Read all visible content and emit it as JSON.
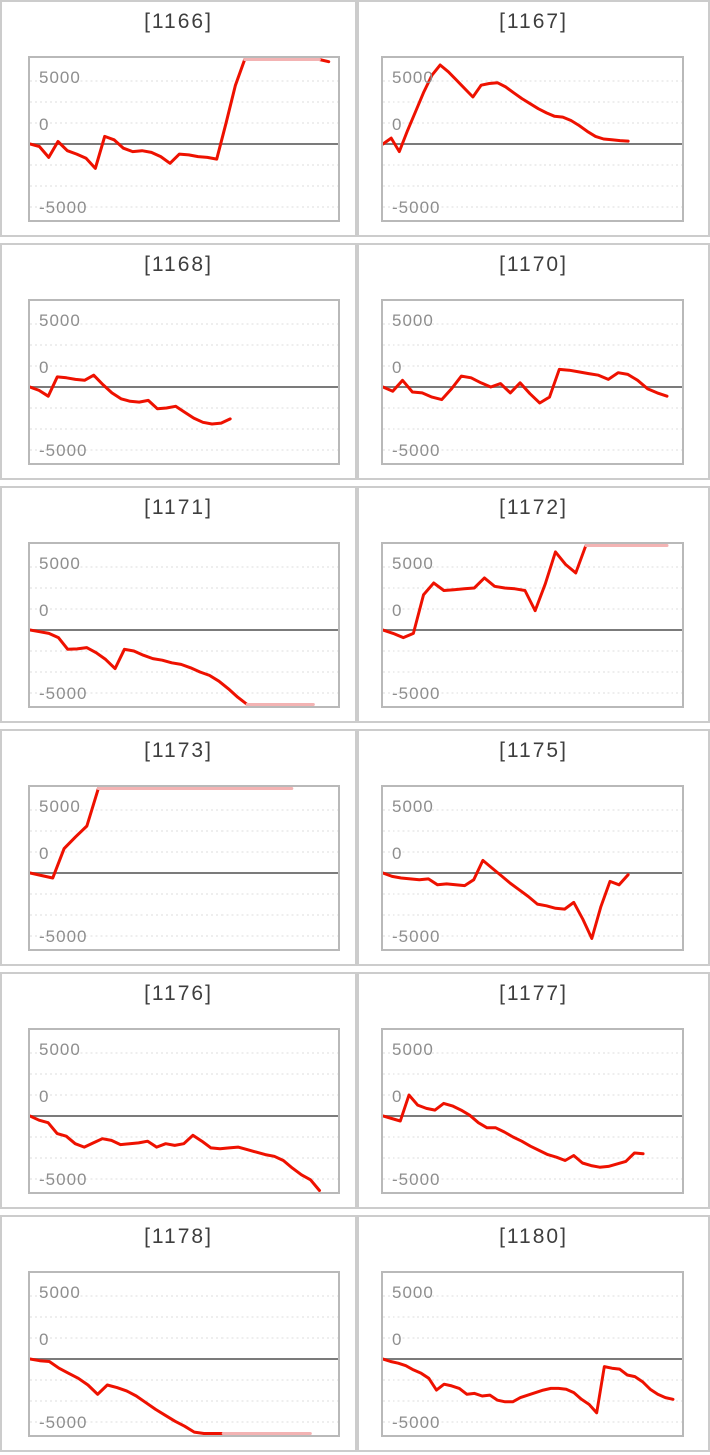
{
  "page": {
    "background": "#ffffff",
    "description": "Grid of 12 machine slump graphs"
  },
  "colors": {
    "line_red": "#ee1100",
    "line_cap_pink": "#f3b3b3",
    "grid_dotted": "#dedede",
    "zero_line": "#7b7b7b",
    "chart_border": "#b9b9b9",
    "frame_border": "#cccccc",
    "tick_label": "#8e8e8e",
    "title_text": "#3e3e3e"
  },
  "axis": {
    "tick_labels": [
      "5000",
      "0",
      "-5000"
    ],
    "tick_values": [
      5000,
      0,
      -5000
    ],
    "grid_values": [
      7500,
      5000,
      2500,
      -2500,
      -5000,
      -7500
    ],
    "units_per_grid": 2500,
    "zero_value": 0,
    "cap_top": 10400,
    "cap_bottom": -9400,
    "grid_style": "dotted",
    "legend": "none"
  },
  "chart_data": [
    {
      "type": "line",
      "title": "[1166]",
      "id": "1166",
      "ylim": [
        -9400,
        10400
      ],
      "x_span_frac": 0.97,
      "values": [
        0,
        -300,
        -1600,
        300,
        -800,
        -1200,
        -1700,
        -2900,
        900,
        500,
        -500,
        -900,
        -800,
        -1000,
        -1500,
        -2300,
        -1200,
        -1300,
        -1500,
        -1600,
        -1800,
        2500,
        7000,
        10400,
        10400,
        10400,
        10400,
        10400,
        10400,
        10400,
        10400,
        10400,
        9800
      ]
    },
    {
      "type": "line",
      "title": "[1167]",
      "id": "1167",
      "ylim": [
        -9400,
        10400
      ],
      "x_span_frac": 0.82,
      "values": [
        0,
        700,
        -900,
        1600,
        3900,
        6200,
        8200,
        9400,
        8600,
        7600,
        6600,
        5600,
        7000,
        7200,
        7300,
        6800,
        6100,
        5400,
        4800,
        4200,
        3700,
        3300,
        3200,
        2800,
        2200,
        1500,
        900,
        600,
        500,
        400,
        350
      ]
    },
    {
      "type": "line",
      "title": "[1168]",
      "id": "1168",
      "ylim": [
        -9400,
        10400
      ],
      "x_span_frac": 0.65,
      "values": [
        0,
        -400,
        -1100,
        1200,
        1100,
        900,
        800,
        1400,
        300,
        -700,
        -1400,
        -1700,
        -1800,
        -1600,
        -2600,
        -2500,
        -2300,
        -3000,
        -3700,
        -4200,
        -4400,
        -4300,
        -3800
      ]
    },
    {
      "type": "line",
      "title": "[1170]",
      "id": "1170",
      "ylim": [
        -9400,
        10400
      ],
      "x_span_frac": 0.95,
      "values": [
        0,
        -500,
        800,
        -600,
        -700,
        -1200,
        -1500,
        -200,
        1300,
        1100,
        500,
        0,
        400,
        -700,
        500,
        -800,
        -1900,
        -1200,
        2100,
        2000,
        1800,
        1600,
        1400,
        900,
        1700,
        1500,
        800,
        -200,
        -700,
        -1100
      ]
    },
    {
      "type": "line",
      "title": "[1171]",
      "id": "1171",
      "ylim": [
        -9400,
        10400
      ],
      "x_span_frac": 0.92,
      "values": [
        0,
        -200,
        -400,
        -900,
        -2300,
        -2250,
        -2100,
        -2700,
        -3500,
        -4600,
        -2300,
        -2500,
        -3000,
        -3400,
        -3600,
        -3900,
        -4100,
        -4500,
        -5000,
        -5400,
        -6100,
        -7000,
        -8000,
        -9400,
        -9400,
        -9400,
        -9400,
        -9400,
        -9400,
        -9400,
        -9400
      ]
    },
    {
      "type": "line",
      "title": "[1172]",
      "id": "1172",
      "ylim": [
        -9400,
        10400
      ],
      "x_span_frac": 0.95,
      "values": [
        0,
        -400,
        -900,
        -400,
        4200,
        5600,
        4700,
        4800,
        4900,
        5000,
        6200,
        5200,
        5000,
        4900,
        4700,
        2300,
        5500,
        9300,
        7800,
        6800,
        10400,
        10400,
        10400,
        10400,
        10400,
        10400,
        10400,
        10400,
        10400
      ]
    },
    {
      "type": "line",
      "title": "[1173]",
      "id": "1173",
      "ylim": [
        -9400,
        10400
      ],
      "x_span_frac": 0.85,
      "values": [
        0,
        -300,
        -600,
        2900,
        4300,
        5600,
        10400,
        10400,
        10400,
        10400,
        10400,
        10400,
        10400,
        10400,
        10400,
        10400,
        10400,
        10400,
        10400,
        10400,
        10400,
        10400,
        10400,
        10400
      ]
    },
    {
      "type": "line",
      "title": "[1175]",
      "id": "1175",
      "ylim": [
        -9400,
        10400
      ],
      "x_span_frac": 0.82,
      "values": [
        0,
        -400,
        -600,
        -700,
        -800,
        -700,
        -1400,
        -1300,
        -1400,
        -1500,
        -800,
        1500,
        600,
        -300,
        -1200,
        -2000,
        -2800,
        -3700,
        -3900,
        -4200,
        -4300,
        -3500,
        -5500,
        -7800,
        -4000,
        -1000,
        -1400,
        -200
      ]
    },
    {
      "type": "line",
      "title": "[1176]",
      "id": "1176",
      "ylim": [
        -9400,
        10400
      ],
      "x_span_frac": 0.94,
      "values": [
        0,
        -500,
        -800,
        -2100,
        -2400,
        -3300,
        -3700,
        -3200,
        -2700,
        -2900,
        -3400,
        -3300,
        -3200,
        -3000,
        -3700,
        -3300,
        -3500,
        -3300,
        -2300,
        -3000,
        -3800,
        -3900,
        -3800,
        -3700,
        -4000,
        -4300,
        -4600,
        -4800,
        -5300,
        -6200,
        -7000,
        -7600,
        -9200
      ]
    },
    {
      "type": "line",
      "title": "[1177]",
      "id": "1177",
      "ylim": [
        -9400,
        10400
      ],
      "x_span_frac": 0.87,
      "values": [
        0,
        -300,
        -600,
        2500,
        1300,
        900,
        700,
        1500,
        1200,
        700,
        100,
        -800,
        -1400,
        -1400,
        -1900,
        -2500,
        -3000,
        -3600,
        -4100,
        -4600,
        -4900,
        -5300,
        -4700,
        -5600,
        -5900,
        -6100,
        -6000,
        -5700,
        -5400,
        -4400,
        -4500
      ]
    },
    {
      "type": "line",
      "title": "[1178]",
      "id": "1178",
      "ylim": [
        -9400,
        10400
      ],
      "x_span_frac": 0.91,
      "values": [
        0,
        -200,
        -300,
        -1100,
        -1700,
        -2300,
        -3100,
        -4200,
        -3100,
        -3400,
        -3800,
        -4400,
        -5200,
        -6000,
        -6700,
        -7400,
        -8000,
        -8700,
        -9100,
        -9300,
        -9400,
        -9400,
        -9400,
        -9400,
        -9400,
        -9400,
        -9400,
        -9400,
        -9400,
        -9400
      ]
    },
    {
      "type": "line",
      "title": "[1180]",
      "id": "1180",
      "ylim": [
        -9400,
        10400
      ],
      "x_span_frac": 0.97,
      "values": [
        0,
        -300,
        -500,
        -800,
        -1300,
        -1700,
        -2300,
        -3700,
        -3000,
        -3200,
        -3500,
        -4200,
        -4100,
        -4400,
        -4300,
        -4900,
        -5100,
        -5100,
        -4600,
        -4300,
        -4000,
        -3700,
        -3500,
        -3500,
        -3600,
        -4000,
        -4800,
        -5400,
        -6400,
        -900,
        -1100,
        -1200,
        -1900,
        -2100,
        -2700,
        -3600,
        -4200,
        -4600,
        -4800
      ]
    }
  ]
}
